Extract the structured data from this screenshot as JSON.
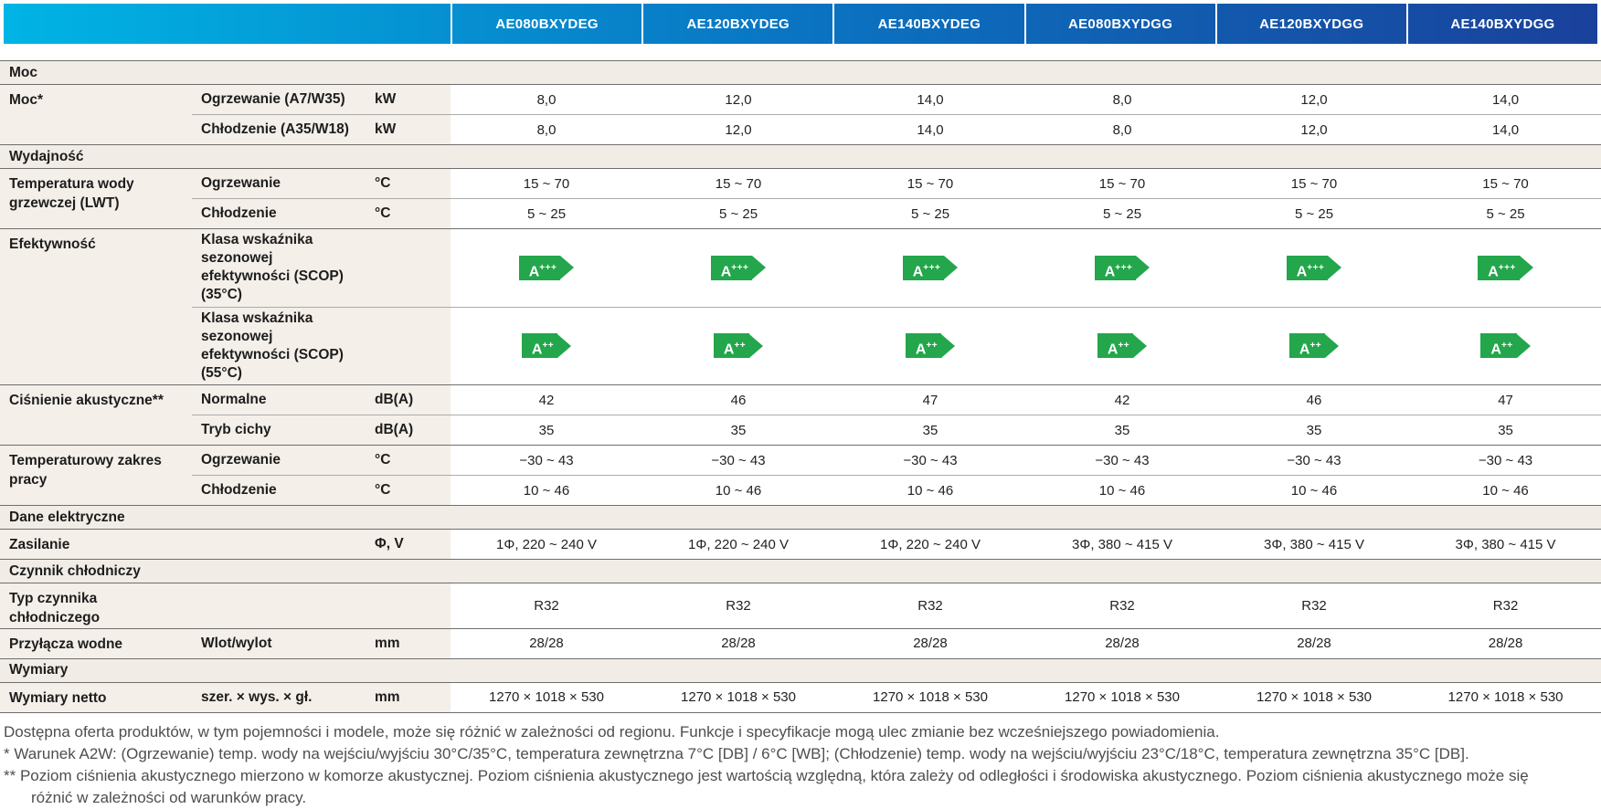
{
  "header": {
    "models": [
      "AE080BXYDEG",
      "AE120BXYDEG",
      "AE140BXYDEG",
      "AE080BXYDGG",
      "AE120BXYDGG",
      "AE140BXYDGG"
    ]
  },
  "colors": {
    "header_gradient_start": "#00b4e4",
    "header_gradient_end": "#1a419b",
    "label_background": "#f4efe9",
    "section_background": "#f1ece5",
    "energy_badge_green": "#23a64c"
  },
  "table": {
    "rows": [
      {
        "type": "section",
        "label": "Moc"
      },
      {
        "type": "group",
        "label": "Moc*",
        "rows": [
          {
            "sub": "Ogrzewanie (A7/W35)",
            "unit": "kW",
            "values": [
              "8,0",
              "12,0",
              "14,0",
              "8,0",
              "12,0",
              "14,0"
            ]
          },
          {
            "sub": "Chłodzenie (A35/W18)",
            "unit": "kW",
            "values": [
              "8,0",
              "12,0",
              "14,0",
              "8,0",
              "12,0",
              "14,0"
            ]
          }
        ]
      },
      {
        "type": "section",
        "label": "Wydajność"
      },
      {
        "type": "group",
        "label": "Temperatura wody grzewczej (LWT)",
        "rows": [
          {
            "sub": "Ogrzewanie",
            "unit": "°C",
            "values": [
              "15 ~ 70",
              "15 ~ 70",
              "15 ~ 70",
              "15 ~ 70",
              "15 ~ 70",
              "15 ~ 70"
            ]
          },
          {
            "sub": "Chłodzenie",
            "unit": "°C",
            "values": [
              "5 ~ 25",
              "5 ~ 25",
              "5 ~ 25",
              "5 ~ 25",
              "5 ~ 25",
              "5 ~ 25"
            ]
          }
        ]
      },
      {
        "type": "group",
        "label": "Efektywność",
        "rows": [
          {
            "sub": "Klasa wskaźnika sezonowej efektywności (SCOP) (35°C)",
            "unit": "",
            "badge": true,
            "tall": true,
            "values": [
              "A+++",
              "A+++",
              "A+++",
              "A+++",
              "A+++",
              "A+++"
            ]
          },
          {
            "sub": "Klasa wskaźnika sezonowej efektywności (SCOP) (55°C)",
            "unit": "",
            "badge": true,
            "tall": true,
            "values": [
              "A++",
              "A++",
              "A++",
              "A++",
              "A++",
              "A++"
            ]
          }
        ]
      },
      {
        "type": "group",
        "label": "Ciśnienie akustyczne**",
        "rows": [
          {
            "sub": "Normalne",
            "unit": "dB(A)",
            "values": [
              "42",
              "46",
              "47",
              "42",
              "46",
              "47"
            ]
          },
          {
            "sub": "Tryb cichy",
            "unit": "dB(A)",
            "values": [
              "35",
              "35",
              "35",
              "35",
              "35",
              "35"
            ]
          }
        ]
      },
      {
        "type": "group",
        "label": "Temperaturowy zakres pracy",
        "rows": [
          {
            "sub": "Ogrzewanie",
            "unit": "°C",
            "values": [
              "−30 ~ 43",
              "−30 ~ 43",
              "−30 ~ 43",
              "−30 ~ 43",
              "−30 ~ 43",
              "−30 ~ 43"
            ]
          },
          {
            "sub": "Chłodzenie",
            "unit": "°C",
            "values": [
              "10 ~ 46",
              "10 ~ 46",
              "10 ~ 46",
              "10 ~ 46",
              "10 ~ 46",
              "10 ~ 46"
            ]
          }
        ]
      },
      {
        "type": "section",
        "label": "Dane elektryczne"
      },
      {
        "type": "group",
        "label": "Zasilanie",
        "rows": [
          {
            "sub": "",
            "unit": "Φ, V",
            "values": [
              "1Φ, 220 ~ 240 V",
              "1Φ, 220 ~ 240 V",
              "1Φ, 220 ~ 240 V",
              "3Φ, 380 ~ 415 V",
              "3Φ, 380 ~ 415 V",
              "3Φ, 380 ~ 415 V"
            ]
          }
        ]
      },
      {
        "type": "section",
        "label": "Czynnik chłodniczy"
      },
      {
        "type": "group",
        "label": "Typ czynnika chłodniczego",
        "rows": [
          {
            "sub": "",
            "unit": "",
            "values": [
              "R32",
              "R32",
              "R32",
              "R32",
              "R32",
              "R32"
            ]
          }
        ]
      },
      {
        "type": "group",
        "label": "Przyłącza wodne",
        "rows": [
          {
            "sub": "Wlot/wylot",
            "unit": "mm",
            "values": [
              "28/28",
              "28/28",
              "28/28",
              "28/28",
              "28/28",
              "28/28"
            ]
          }
        ]
      },
      {
        "type": "section",
        "label": "Wymiary"
      },
      {
        "type": "group",
        "label": "Wymiary netto",
        "rows": [
          {
            "sub": "szer. × wys. × gł.",
            "unit": "mm",
            "values": [
              "1270 × 1018 × 530",
              "1270 × 1018 × 530",
              "1270 × 1018 × 530",
              "1270 × 1018 × 530",
              "1270 × 1018 × 530",
              "1270 × 1018 × 530"
            ]
          }
        ]
      }
    ]
  },
  "notes": [
    {
      "text": "Dostępna oferta produktów, w tym pojemności i modele, może się różnić w zależności od regionu. Funkcje i specyfikacje mogą ulec zmianie bez wcześniejszego powiadomienia."
    },
    {
      "text": "* Warunek A2W: (Ogrzewanie) temp. wody na wejściu/wyjściu 30°C/35°C, temperatura zewnętrzna 7°C [DB] / 6°C [WB]; (Chłodzenie) temp. wody na wejściu/wyjściu 23°C/18°C, temperatura zewnętrzna 35°C [DB]."
    },
    {
      "text": "** Poziom ciśnienia akustycznego mierzono w komorze akustycznej. Poziom ciśnienia akustycznego jest wartością względną, która zależy od odległości i środowiska akustycznego. Poziom ciśnienia akustycznego może się"
    },
    {
      "text": "różnić w zależności od warunków pracy.",
      "cont": true
    }
  ]
}
